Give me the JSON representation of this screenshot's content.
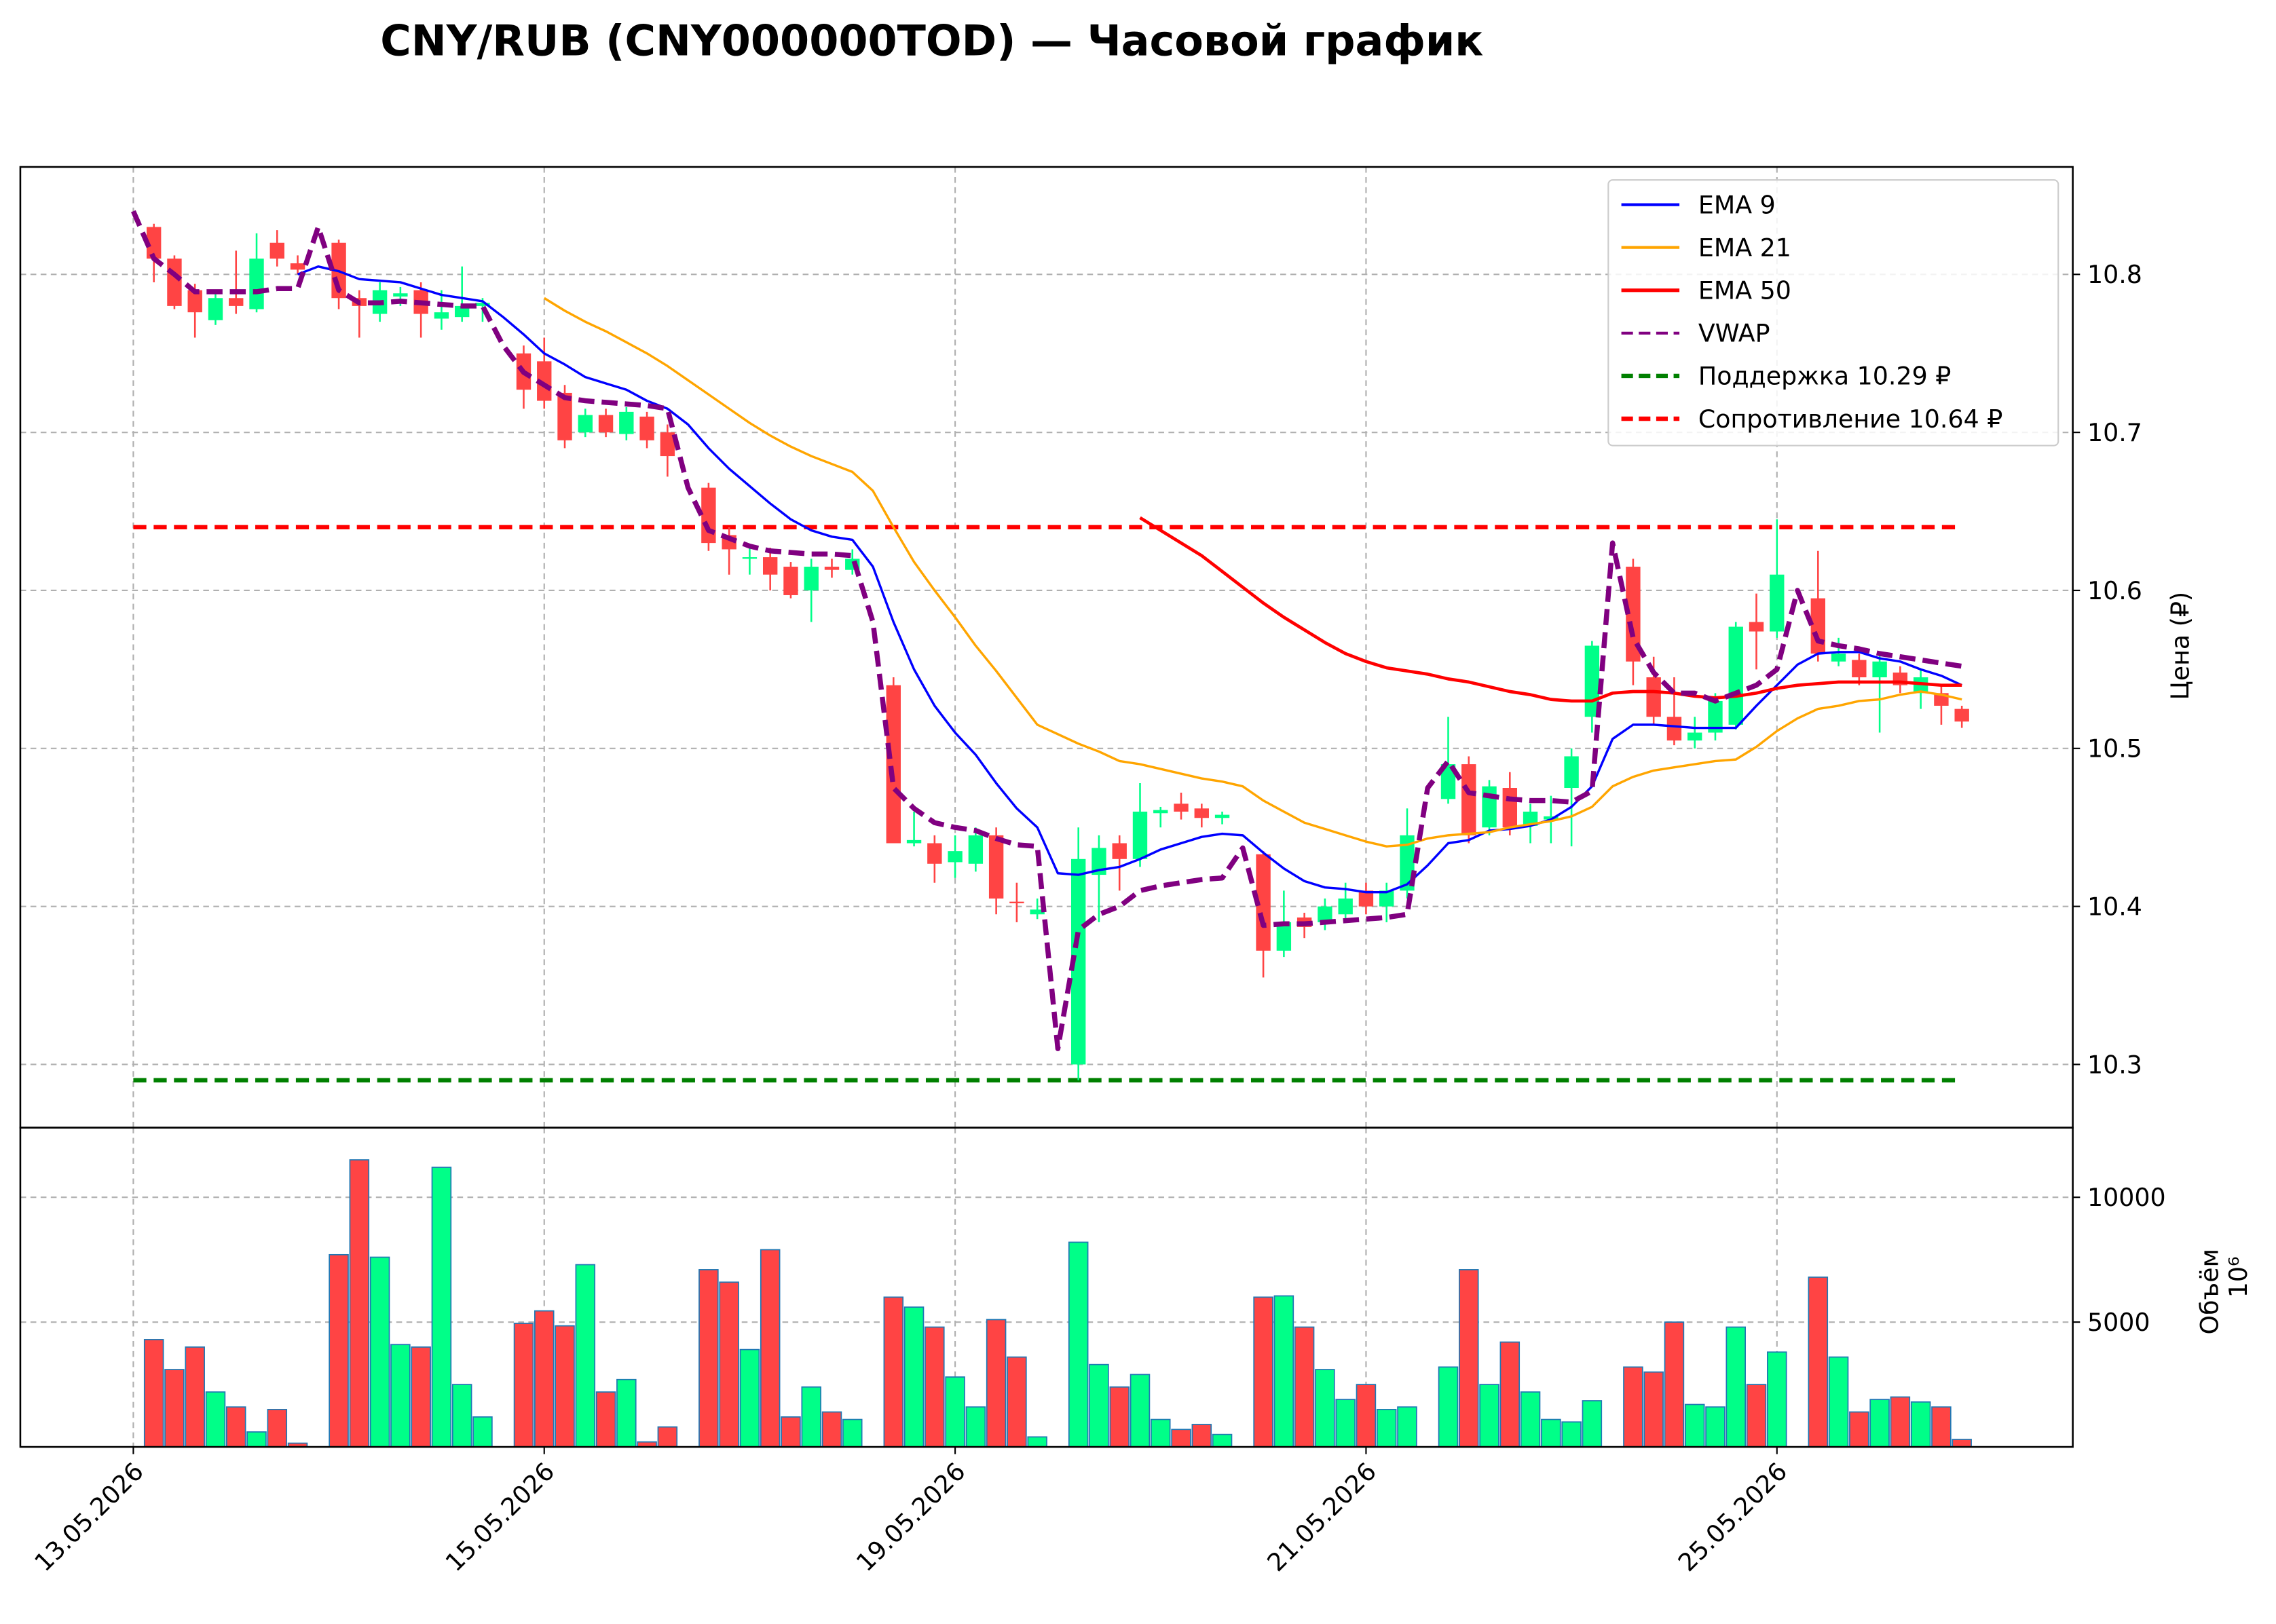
{
  "chart_data": {
    "type": "candlestick",
    "title": "CNY/RUB (CNY000000TOD) — Часовой график",
    "ylabel": "Цена (₽)",
    "volume_label": "Объём",
    "volume_offset": "10⁶",
    "up_color": "#00ff88",
    "down_color": "#ff4444",
    "x": [
      0,
      1,
      2,
      3,
      4,
      5,
      6,
      7,
      8,
      9,
      10,
      11,
      12,
      13,
      14,
      15,
      16,
      17,
      18,
      19,
      20,
      21,
      22,
      23,
      24,
      25,
      26,
      27,
      28,
      29,
      30,
      31,
      32,
      33,
      34,
      35,
      36,
      37,
      38,
      39,
      40,
      41,
      42,
      43,
      44,
      45,
      46,
      47,
      48,
      49,
      50,
      51,
      52,
      53,
      54,
      55,
      56,
      57,
      58,
      59,
      60,
      61,
      62,
      63,
      64,
      65,
      66,
      67,
      68,
      69,
      70,
      71,
      72,
      73,
      74,
      75,
      76,
      77,
      78,
      79,
      80,
      81,
      82,
      83,
      84,
      85,
      86,
      87,
      88,
      89
    ],
    "open": [
      null,
      10.83,
      10.81,
      10.79,
      10.771,
      10.785,
      10.778,
      10.82,
      10.807,
      null,
      10.82,
      10.785,
      10.775,
      10.786,
      10.79,
      10.772,
      10.773,
      10.78,
      null,
      10.75,
      10.745,
      10.725,
      10.7,
      10.711,
      10.699,
      10.71,
      10.7,
      null,
      10.665,
      10.635,
      10.62,
      10.621,
      10.615,
      10.6,
      10.615,
      10.613,
      null,
      10.54,
      10.44,
      10.44,
      10.428,
      10.427,
      10.445,
      10.403,
      10.395,
      null,
      10.3,
      10.42,
      10.44,
      10.43,
      10.459,
      10.465,
      10.462,
      10.456,
      null,
      10.433,
      10.372,
      10.393,
      10.39,
      10.395,
      10.41,
      10.4,
      10.41,
      null,
      10.468,
      10.49,
      10.45,
      10.475,
      10.451,
      10.455,
      10.475,
      10.52,
      null,
      10.615,
      10.545,
      10.52,
      10.505,
      10.51,
      10.515,
      10.58,
      10.574,
      null,
      10.595,
      10.555,
      10.556,
      10.545,
      10.548,
      10.535,
      10.535,
      10.525
    ],
    "high": [
      null,
      10.832,
      10.812,
      10.794,
      10.79,
      10.815,
      10.826,
      10.828,
      10.812,
      null,
      10.822,
      10.79,
      10.795,
      10.792,
      10.795,
      10.79,
      10.805,
      10.785,
      null,
      10.755,
      10.76,
      10.73,
      10.715,
      10.715,
      10.716,
      10.713,
      10.705,
      null,
      10.668,
      10.64,
      10.628,
      10.627,
      10.618,
      10.62,
      10.62,
      10.626,
      null,
      10.545,
      10.46,
      10.445,
      10.445,
      10.45,
      10.45,
      10.415,
      10.405,
      null,
      10.45,
      10.445,
      10.445,
      10.478,
      10.463,
      10.472,
      10.465,
      10.46,
      null,
      10.435,
      10.41,
      10.396,
      10.405,
      10.415,
      10.415,
      10.415,
      10.462,
      null,
      10.52,
      10.495,
      10.48,
      10.485,
      10.465,
      10.47,
      10.5,
      10.568,
      null,
      10.62,
      10.558,
      10.545,
      10.52,
      10.535,
      10.58,
      10.598,
      10.645,
      null,
      10.625,
      10.57,
      10.56,
      10.56,
      10.552,
      10.55,
      10.54,
      10.527
    ],
    "low": [
      null,
      10.795,
      10.778,
      10.76,
      10.768,
      10.775,
      10.776,
      10.805,
      10.8,
      null,
      10.778,
      10.76,
      10.77,
      10.78,
      10.76,
      10.765,
      10.77,
      10.77,
      null,
      10.715,
      10.715,
      10.69,
      10.697,
      10.697,
      10.695,
      10.69,
      10.672,
      null,
      10.625,
      10.61,
      10.61,
      10.6,
      10.595,
      10.58,
      10.608,
      10.61,
      null,
      10.44,
      10.438,
      10.415,
      10.418,
      10.422,
      10.395,
      10.39,
      10.392,
      null,
      10.29,
      10.39,
      10.41,
      10.425,
      10.45,
      10.455,
      10.45,
      10.452,
      null,
      10.355,
      10.368,
      10.38,
      10.385,
      10.392,
      10.395,
      10.39,
      10.405,
      null,
      10.465,
      10.44,
      10.445,
      10.445,
      10.44,
      10.44,
      10.438,
      10.51,
      null,
      10.54,
      10.515,
      10.502,
      10.5,
      10.505,
      10.512,
      10.55,
      10.57,
      null,
      10.555,
      10.552,
      10.54,
      10.51,
      10.535,
      10.525,
      10.515,
      10.513
    ],
    "close": [
      null,
      10.81,
      10.78,
      10.776,
      10.785,
      10.78,
      10.81,
      10.81,
      10.803,
      null,
      10.785,
      10.78,
      10.79,
      10.788,
      10.775,
      10.776,
      10.78,
      10.782,
      null,
      10.727,
      10.72,
      10.695,
      10.711,
      10.7,
      10.713,
      10.695,
      10.685,
      null,
      10.63,
      10.626,
      10.621,
      10.61,
      10.597,
      10.615,
      10.613,
      10.62,
      null,
      10.44,
      10.442,
      10.427,
      10.435,
      10.445,
      10.405,
      10.402,
      10.398,
      null,
      10.43,
      10.437,
      10.43,
      10.46,
      10.461,
      10.46,
      10.456,
      10.458,
      null,
      10.372,
      10.39,
      10.387,
      10.4,
      10.405,
      10.4,
      10.41,
      10.445,
      null,
      10.49,
      10.445,
      10.476,
      10.45,
      10.46,
      10.457,
      10.495,
      10.565,
      null,
      10.555,
      10.52,
      10.505,
      10.51,
      10.53,
      10.577,
      10.574,
      10.61,
      null,
      10.56,
      10.56,
      10.545,
      10.555,
      10.54,
      10.545,
      10.527,
      10.517
    ],
    "volume": [
      null,
      4300,
      3100,
      4000,
      2200,
      1600,
      600,
      1500,
      150,
      null,
      7700,
      11500,
      7600,
      4100,
      4000,
      11200,
      2500,
      1200,
      null,
      4950,
      5450,
      4850,
      7300,
      2200,
      2700,
      200,
      800,
      null,
      7100,
      6600,
      3900,
      7900,
      1200,
      2400,
      1400,
      1100,
      null,
      6000,
      5600,
      4800,
      2800,
      1600,
      5100,
      3600,
      400,
      null,
      8200,
      3300,
      2400,
      2900,
      1100,
      700,
      900,
      500,
      null,
      6000,
      6050,
      4800,
      3100,
      1900,
      2500,
      1500,
      1600,
      null,
      3200,
      7100,
      2500,
      4200,
      2200,
      1100,
      1000,
      1850,
      null,
      3200,
      3000,
      5000,
      1700,
      1600,
      4800,
      2500,
      3800,
      null,
      6800,
      3600,
      1400,
      1900,
      2000,
      1800,
      1600,
      300
    ],
    "series": [
      {
        "name": "EMA 9",
        "color": "#0000ff",
        "dashed": false,
        "values": [
          null,
          null,
          null,
          null,
          null,
          null,
          null,
          null,
          10.8,
          10.805,
          10.802,
          10.797,
          10.796,
          10.795,
          10.791,
          10.787,
          10.785,
          10.783,
          10.773,
          10.762,
          10.75,
          10.743,
          10.735,
          10.731,
          10.727,
          10.72,
          10.715,
          10.705,
          10.69,
          10.677,
          10.666,
          10.655,
          10.645,
          10.638,
          10.634,
          10.632,
          10.615,
          10.58,
          10.55,
          10.527,
          10.51,
          10.496,
          10.478,
          10.462,
          10.45,
          10.421,
          10.42,
          10.423,
          10.425,
          10.43,
          10.436,
          10.44,
          10.444,
          10.446,
          10.445,
          10.434,
          10.424,
          10.416,
          10.412,
          10.411,
          10.409,
          10.409,
          10.414,
          10.426,
          10.44,
          10.442,
          10.448,
          10.449,
          10.451,
          10.455,
          10.463,
          10.476,
          10.506,
          10.515,
          10.515,
          10.514,
          10.513,
          10.513,
          10.513,
          10.527,
          10.54,
          10.553,
          10.56,
          10.561,
          10.561,
          10.557,
          10.555,
          10.55,
          10.546,
          10.54
        ]
      },
      {
        "name": "EMA 21",
        "color": "#ffa500",
        "dashed": false,
        "values": [
          null,
          null,
          null,
          null,
          null,
          null,
          null,
          null,
          null,
          null,
          null,
          null,
          null,
          null,
          null,
          null,
          null,
          null,
          null,
          null,
          10.785,
          10.777,
          10.77,
          10.764,
          10.757,
          10.75,
          10.742,
          10.733,
          10.724,
          10.715,
          10.706,
          10.698,
          10.691,
          10.685,
          10.68,
          10.675,
          10.663,
          10.64,
          10.618,
          10.6,
          10.583,
          10.565,
          10.549,
          10.532,
          10.515,
          10.509,
          10.503,
          10.498,
          10.492,
          10.49,
          10.487,
          10.484,
          10.481,
          10.479,
          10.476,
          10.467,
          10.46,
          10.453,
          10.449,
          10.445,
          10.441,
          10.438,
          10.439,
          10.443,
          10.445,
          10.446,
          10.447,
          10.45,
          10.452,
          10.454,
          10.457,
          10.463,
          10.476,
          10.482,
          10.486,
          10.488,
          10.49,
          10.492,
          10.493,
          10.501,
          10.511,
          10.519,
          10.525,
          10.527,
          10.53,
          10.531,
          10.534,
          10.536,
          10.534,
          10.531
        ]
      },
      {
        "name": "EMA 50",
        "color": "#ff0000",
        "dashed": false,
        "values": [
          null,
          null,
          null,
          null,
          null,
          null,
          null,
          null,
          null,
          null,
          null,
          null,
          null,
          null,
          null,
          null,
          null,
          null,
          null,
          null,
          null,
          null,
          null,
          null,
          null,
          null,
          null,
          null,
          null,
          null,
          null,
          null,
          null,
          null,
          null,
          null,
          null,
          null,
          null,
          null,
          null,
          null,
          null,
          null,
          null,
          null,
          null,
          null,
          null,
          10.646,
          10.638,
          10.63,
          10.622,
          10.612,
          10.602,
          10.592,
          10.583,
          10.575,
          10.567,
          10.56,
          10.555,
          10.551,
          10.549,
          10.547,
          10.544,
          10.542,
          10.539,
          10.536,
          10.534,
          10.531,
          10.53,
          10.53,
          10.535,
          10.536,
          10.536,
          10.535,
          10.533,
          10.532,
          10.533,
          10.535,
          10.538,
          10.54,
          10.541,
          10.542,
          10.542,
          10.542,
          10.542,
          10.541,
          10.54,
          10.54
        ]
      },
      {
        "name": "VWAP",
        "color": "#800080",
        "dashed": true,
        "values": [
          10.84,
          10.81,
          10.8,
          10.789,
          10.789,
          10.789,
          10.789,
          10.791,
          10.791,
          10.83,
          10.79,
          10.782,
          10.782,
          10.783,
          10.782,
          10.781,
          10.78,
          10.78,
          10.755,
          10.738,
          10.73,
          10.722,
          10.72,
          10.719,
          10.718,
          10.717,
          10.715,
          10.665,
          10.638,
          10.633,
          10.628,
          10.625,
          10.624,
          10.623,
          10.623,
          10.622,
          10.58,
          10.475,
          10.462,
          10.453,
          10.45,
          10.448,
          10.443,
          10.439,
          10.438,
          10.31,
          10.385,
          10.395,
          10.4,
          10.41,
          10.413,
          10.415,
          10.417,
          10.418,
          10.437,
          10.388,
          10.389,
          10.389,
          10.39,
          10.391,
          10.392,
          10.393,
          10.395,
          10.475,
          10.492,
          10.472,
          10.47,
          10.468,
          10.467,
          10.467,
          10.466,
          10.473,
          10.63,
          10.57,
          10.548,
          10.535,
          10.535,
          10.53,
          10.535,
          10.54,
          10.55,
          10.6,
          10.568,
          10.565,
          10.563,
          10.56,
          10.558,
          10.556,
          10.554,
          10.552
        ]
      }
    ],
    "hlines": [
      {
        "name": "Поддержка 10.29 ₽",
        "value": 10.29,
        "color": "#008000"
      },
      {
        "name": "Сопротивление 10.64 ₽",
        "value": 10.64,
        "color": "#ff0000"
      }
    ],
    "xlim": [
      -5.5,
      94.4
    ],
    "xticks": [
      {
        "value": 0,
        "label": "13.05.2026"
      },
      {
        "value": 20,
        "label": "15.05.2026"
      },
      {
        "value": 40,
        "label": "19.05.2026"
      },
      {
        "value": 60,
        "label": "21.05.2026"
      },
      {
        "value": 80,
        "label": "25.05.2026"
      }
    ],
    "ylim": [
      10.26,
      10.868
    ],
    "yticks": [
      10.3,
      10.4,
      10.5,
      10.6,
      10.7,
      10.8
    ],
    "vol_ylim": [
      0,
      12790
    ],
    "vol_yticks": [
      5000,
      10000
    ],
    "grid": true,
    "legend": "upper right"
  }
}
